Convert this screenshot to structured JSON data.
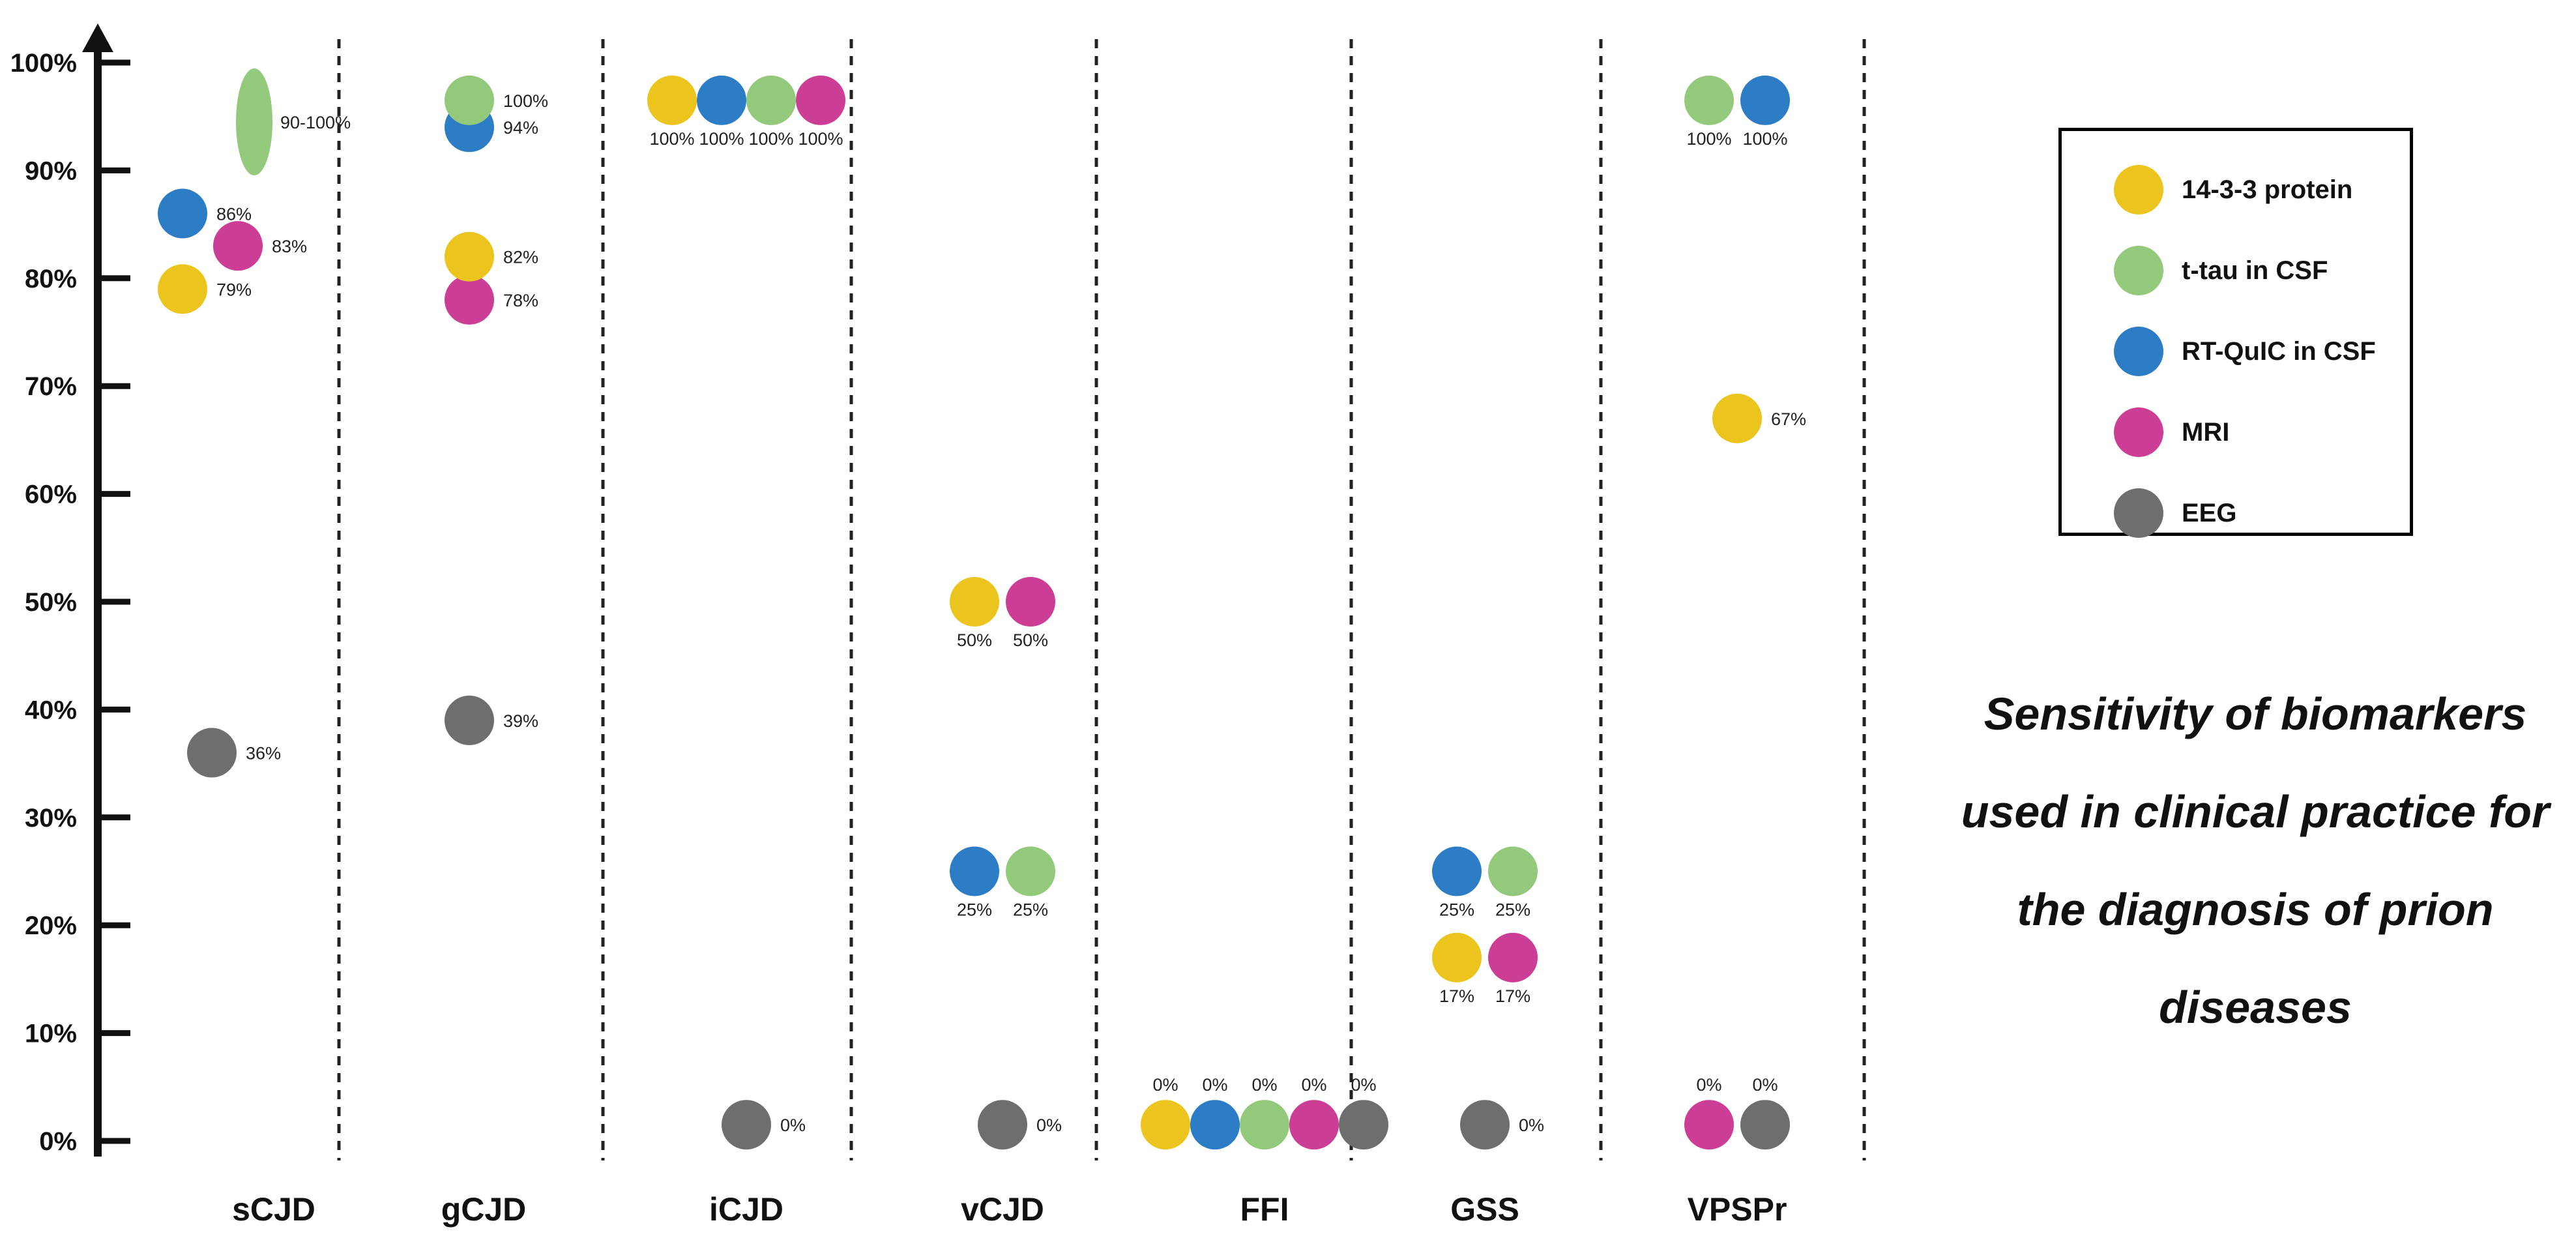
{
  "chart_data": {
    "type": "scatter",
    "title": "Sensitivity of biomarkers used in clinical practice for the diagnosis of prion diseases",
    "ylabel": "",
    "xlabel": "",
    "ylim": [
      0,
      100
    ],
    "yticks": [
      0,
      10,
      20,
      30,
      40,
      50,
      60,
      70,
      80,
      90,
      100
    ],
    "ytick_labels": [
      "0%",
      "10%",
      "20%",
      "30%",
      "40%",
      "50%",
      "60%",
      "70%",
      "80%",
      "90%",
      "100%"
    ],
    "categories": [
      "sCJD",
      "gCJD",
      "iCJD",
      "vCJD",
      "FFI",
      "GSS",
      "VPSPr"
    ],
    "legend_position": "right",
    "series": [
      {
        "key": "protein1433",
        "name": "14-3-3 protein",
        "color": "#EBC51D"
      },
      {
        "key": "ttau",
        "name": "t-tau in CSF",
        "color": "#93C97A"
      },
      {
        "key": "rtquic",
        "name": "RT-QuIC in CSF",
        "color": "#2D7DC6"
      },
      {
        "key": "mri",
        "name": "MRI",
        "color": "#CC3D96"
      },
      {
        "key": "eeg",
        "name": "EEG",
        "color": "#6E6E6E"
      }
    ],
    "points": [
      {
        "category": "sCJD",
        "series": "ttau",
        "value": 95,
        "label": "90-100%"
      },
      {
        "category": "sCJD",
        "series": "rtquic",
        "value": 86,
        "label": "86%"
      },
      {
        "category": "sCJD",
        "series": "mri",
        "value": 83,
        "label": "83%"
      },
      {
        "category": "sCJD",
        "series": "protein1433",
        "value": 79,
        "label": "79%"
      },
      {
        "category": "sCJD",
        "series": "eeg",
        "value": 36,
        "label": "36%"
      },
      {
        "category": "gCJD",
        "series": "ttau",
        "value": 100,
        "label": "100%"
      },
      {
        "category": "gCJD",
        "series": "rtquic",
        "value": 94,
        "label": "94%"
      },
      {
        "category": "gCJD",
        "series": "protein1433",
        "value": 82,
        "label": "82%"
      },
      {
        "category": "gCJD",
        "series": "mri",
        "value": 78,
        "label": "78%"
      },
      {
        "category": "gCJD",
        "series": "eeg",
        "value": 39,
        "label": "39%"
      },
      {
        "category": "iCJD",
        "series": "protein1433",
        "value": 100,
        "label": "100%"
      },
      {
        "category": "iCJD",
        "series": "rtquic",
        "value": 100,
        "label": "100%"
      },
      {
        "category": "iCJD",
        "series": "ttau",
        "value": 100,
        "label": "100%"
      },
      {
        "category": "iCJD",
        "series": "mri",
        "value": 100,
        "label": "100%"
      },
      {
        "category": "iCJD",
        "series": "eeg",
        "value": 0,
        "label": "0%"
      },
      {
        "category": "vCJD",
        "series": "protein1433",
        "value": 50,
        "label": "50%"
      },
      {
        "category": "vCJD",
        "series": "mri",
        "value": 50,
        "label": "50%"
      },
      {
        "category": "vCJD",
        "series": "rtquic",
        "value": 25,
        "label": "25%"
      },
      {
        "category": "vCJD",
        "series": "ttau",
        "value": 25,
        "label": "25%"
      },
      {
        "category": "vCJD",
        "series": "eeg",
        "value": 0,
        "label": "0%"
      },
      {
        "category": "FFI",
        "series": "protein1433",
        "value": 0,
        "label": "0%"
      },
      {
        "category": "FFI",
        "series": "rtquic",
        "value": 0,
        "label": "0%"
      },
      {
        "category": "FFI",
        "series": "ttau",
        "value": 0,
        "label": "0%"
      },
      {
        "category": "FFI",
        "series": "mri",
        "value": 0,
        "label": "0%"
      },
      {
        "category": "FFI",
        "series": "eeg",
        "value": 0,
        "label": "0%"
      },
      {
        "category": "GSS",
        "series": "rtquic",
        "value": 25,
        "label": "25%"
      },
      {
        "category": "GSS",
        "series": "ttau",
        "value": 25,
        "label": "25%"
      },
      {
        "category": "GSS",
        "series": "protein1433",
        "value": 17,
        "label": "17%"
      },
      {
        "category": "GSS",
        "series": "mri",
        "value": 17,
        "label": "17%"
      },
      {
        "category": "GSS",
        "series": "eeg",
        "value": 0,
        "label": "0%"
      },
      {
        "category": "VPSPr",
        "series": "ttau",
        "value": 100,
        "label": "100%"
      },
      {
        "category": "VPSPr",
        "series": "rtquic",
        "value": 100,
        "label": "100%"
      },
      {
        "category": "VPSPr",
        "series": "protein1433",
        "value": 67,
        "label": "67%"
      },
      {
        "category": "VPSPr",
        "series": "mri",
        "value": 0,
        "label": "0%"
      },
      {
        "category": "VPSPr",
        "series": "eeg",
        "value": 0,
        "label": "0%"
      }
    ]
  }
}
